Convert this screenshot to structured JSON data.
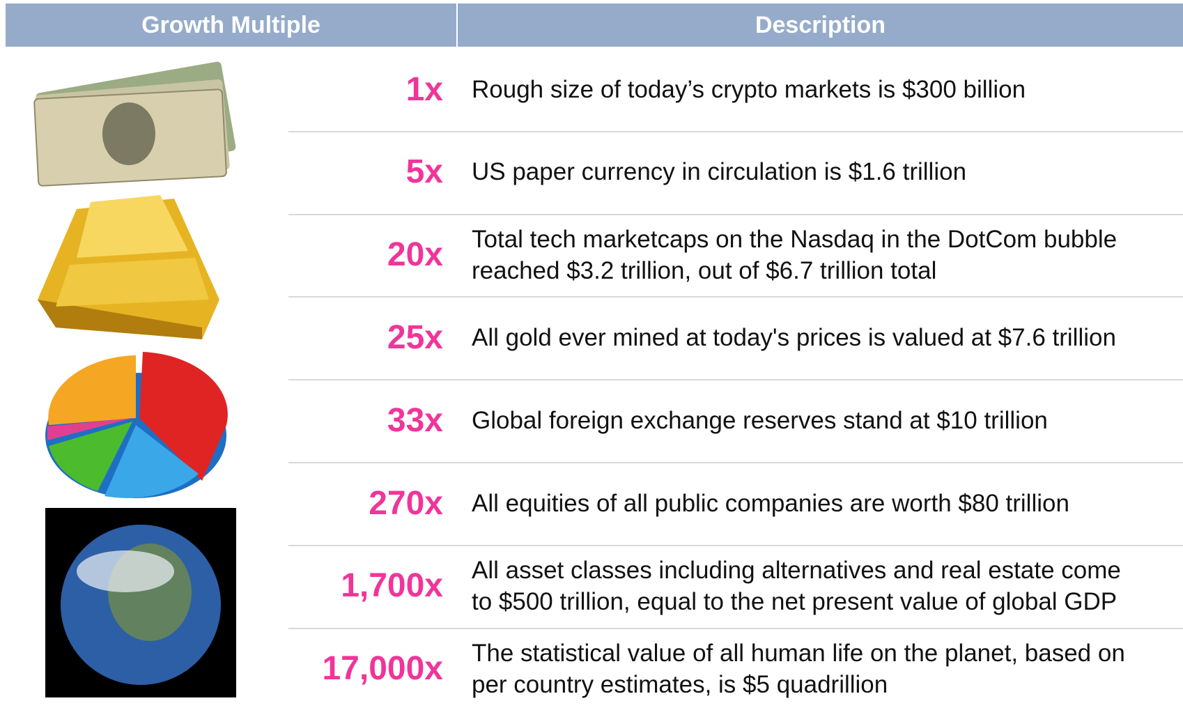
{
  "header": {
    "columns": [
      "Growth Multiple",
      "Description"
    ]
  },
  "rows": [
    {
      "multiple": "1x",
      "lines": [
        "Rough size of today’s crypto markets is $300 billion"
      ]
    },
    {
      "multiple": "5x",
      "lines": [
        "US paper currency in circulation is $1.6 trillion"
      ]
    },
    {
      "multiple": "20x",
      "lines": [
        "Total tech marketcaps on the Nasdaq in the DotCom bubble",
        "reached $3.2 trillion, out of $6.7 trillion total"
      ]
    },
    {
      "multiple": "25x",
      "lines": [
        "All gold ever mined at today's prices is valued at $7.6 trillion"
      ]
    },
    {
      "multiple": "33x",
      "lines": [
        "Global foreign exchange reserves stand at $10 trillion"
      ]
    },
    {
      "multiple": "270x",
      "lines": [
        "All equities of all public companies are worth $80 trillion"
      ]
    },
    {
      "multiple": "1,700x",
      "lines": [
        "All asset classes including alternatives and real estate come",
        "to $500 trillion, equal to the net present value of global GDP"
      ]
    },
    {
      "multiple": "17,000x",
      "lines": [
        "The statistical value of all human life on the planet, based on",
        "per country estimates, is $5 quadrillion"
      ]
    }
  ]
}
